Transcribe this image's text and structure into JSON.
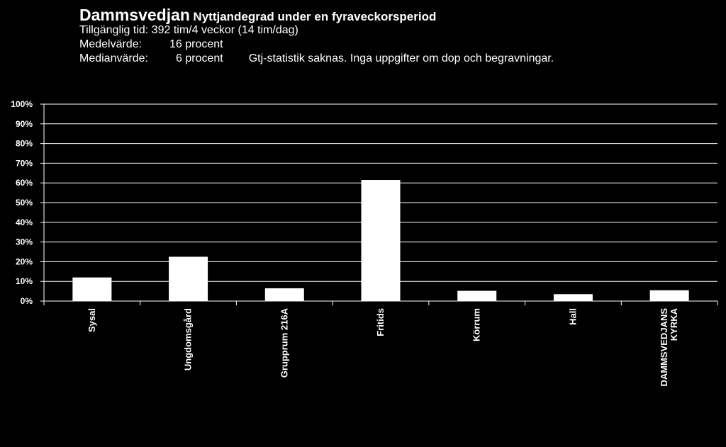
{
  "header": {
    "title": "Dammsvedjan",
    "subtitle": "Nyttjandegrad under en fyraveckorsperiod",
    "line1": "Tillgänglig tid: 392 tim/4 veckor (14 tim/dag)",
    "line2_label": "Medelvärde:",
    "line2_value": "16 procent",
    "line3_label": "Medianvärde:",
    "line3_value": "6 procent",
    "line3_note": "Gtj-statistik saknas. Inga uppgifter om dop och begravningar."
  },
  "chart_data": {
    "type": "bar",
    "categories": [
      "Sysal",
      "Ungdomsgård",
      "Grupprum 216A",
      "Fritids",
      "Körrum",
      "Hall",
      [
        "DAMMSVEDJANS",
        "KYRKA"
      ]
    ],
    "values": [
      12,
      22.5,
      6.5,
      61.5,
      5.2,
      3.5,
      5.5
    ],
    "ylim": [
      0,
      100
    ],
    "yticks": [
      "0%",
      "10%",
      "20%",
      "30%",
      "40%",
      "50%",
      "60%",
      "70%",
      "80%",
      "90%",
      "100%"
    ],
    "grid": true,
    "legend": "none",
    "colors": {
      "background": "#000000",
      "bar": "#ffffff",
      "axis": "#ffffff",
      "grid": "#ffffff"
    }
  }
}
